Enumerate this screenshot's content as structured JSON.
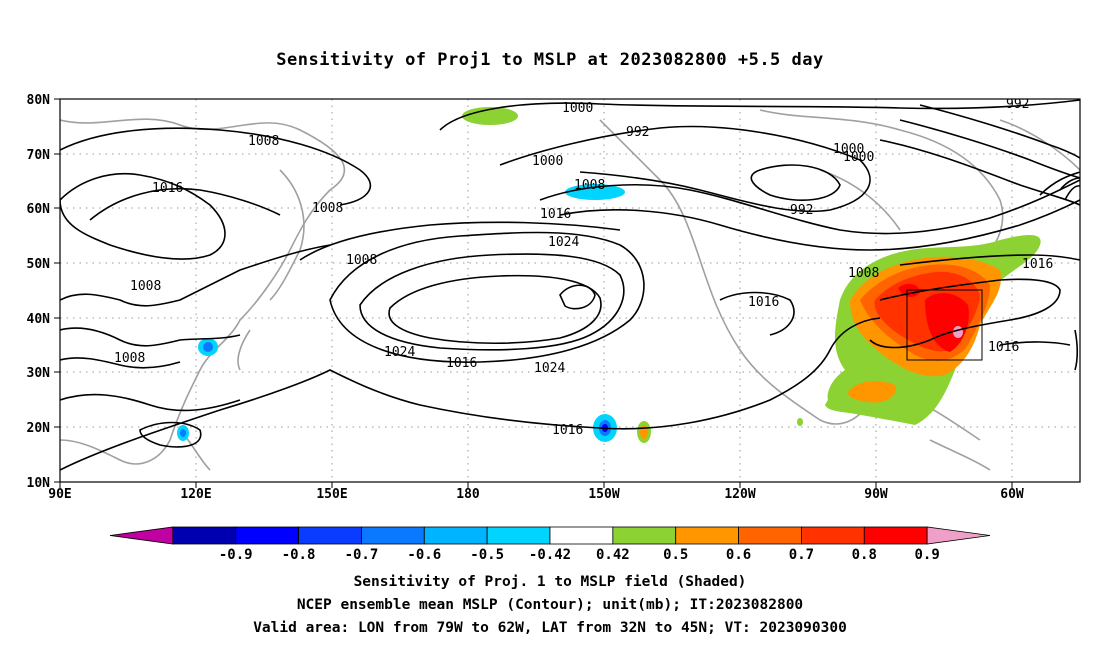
{
  "title": "Sensitivity of Proj1 to MSLP at 2023082800 +5.5 day",
  "lat_labels": [
    "80N",
    "70N",
    "60N",
    "50N",
    "40N",
    "30N",
    "20N",
    "10N"
  ],
  "lon_labels": [
    "90E",
    "120E",
    "150E",
    "180",
    "150W",
    "120W",
    "90W",
    "60W"
  ],
  "contour_labels": {
    "c1000a": "1000",
    "c992a": "992",
    "c992b": "992",
    "c1000b": "1000",
    "c1000c": "1000",
    "c1008a": "1008",
    "c1016a": "1016",
    "c1008b": "1008",
    "c1008c": "1008",
    "c1008d": "1008",
    "c1008e": "1008",
    "c1008f": "1008",
    "c1016b": "1016",
    "c1016c": "1016",
    "c1016d": "1016",
    "c1016e": "1016",
    "c1016f": "1016",
    "c1016g": "1016",
    "c1024a": "1024",
    "c1024b": "1024",
    "c1024c": "1024",
    "c992c": "992",
    "c1008g": "1008"
  },
  "colorbar": {
    "labels": [
      "-0.9",
      "-0.8",
      "-0.7",
      "-0.6",
      "-0.5",
      "-0.42",
      "0.42",
      "0.5",
      "0.6",
      "0.7",
      "0.8",
      "0.9"
    ],
    "colors": [
      "#c000a0",
      "#0000b0",
      "#0000ff",
      "#0a3cff",
      "#0a78ff",
      "#00b4ff",
      "#00d4ff",
      "#ffffff",
      "#8cd232",
      "#ff9600",
      "#ff6400",
      "#ff3200",
      "#ff0000",
      "#f0a0c8"
    ]
  },
  "footer": {
    "line1": "Sensitivity of Proj. 1 to MSLP field (Shaded)",
    "line2": "NCEP ensemble mean MSLP (Contour); unit(mb); IT:2023082800",
    "line3": "Valid area: LON from 79W to 62W, LAT from 32N to 45N; VT: 2023090300"
  }
}
